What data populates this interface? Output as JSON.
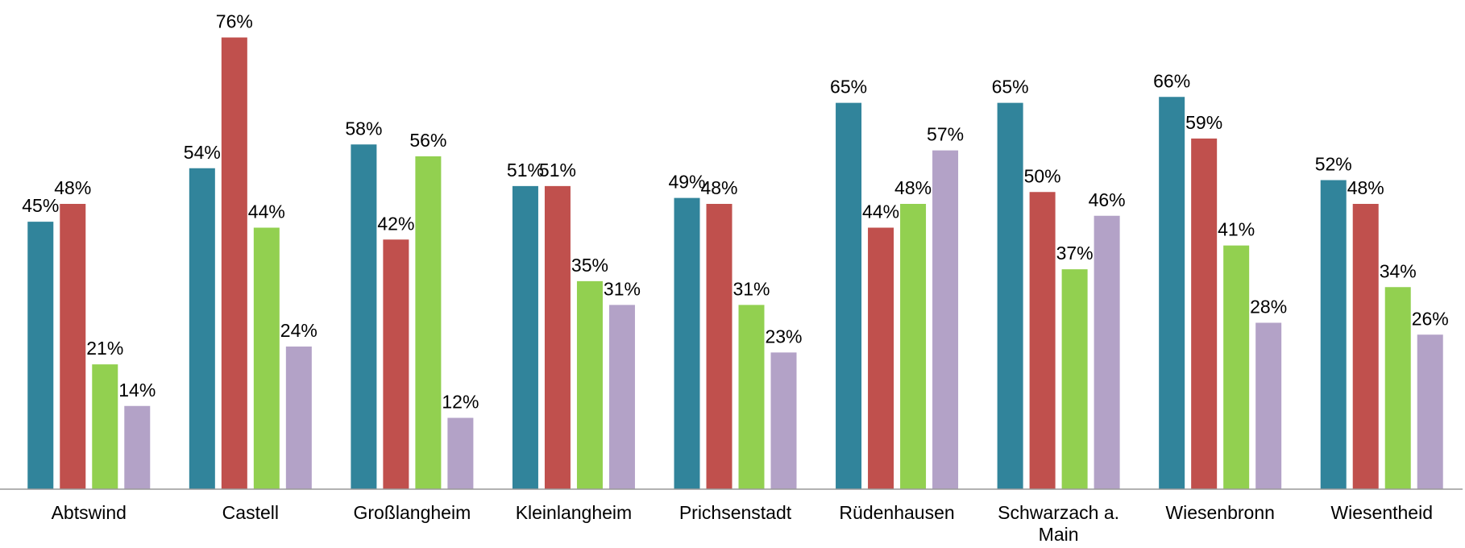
{
  "chart_data": {
    "type": "bar",
    "categories": [
      "Abtswind",
      "Castell",
      "Großlangheim",
      "Kleinlangheim",
      "Prichsenstadt",
      "Rüdenhausen",
      "Schwarzach a. Main",
      "Wiesenbronn",
      "Wiesentheid"
    ],
    "series": [
      {
        "color": "#31849b",
        "values": [
          45,
          54,
          58,
          51,
          49,
          65,
          65,
          66,
          52
        ],
        "value_labels": [
          "45%",
          "54%",
          "58%",
          "51%",
          "49%",
          "65%",
          "65%",
          "66%",
          "52%"
        ]
      },
      {
        "color": "#c0504d",
        "values": [
          48,
          76,
          42,
          51,
          48,
          44,
          50,
          59,
          48
        ],
        "value_labels": [
          "48%",
          "76%",
          "42%",
          "51%",
          "48%",
          "44%",
          "50%",
          "59%",
          "48%"
        ]
      },
      {
        "color": "#92d050",
        "values": [
          21,
          44,
          56,
          35,
          31,
          48,
          37,
          41,
          34
        ],
        "value_labels": [
          "21%",
          "44%",
          "56%",
          "35%",
          "31%",
          "48%",
          "37%",
          "41%",
          "34%"
        ]
      },
      {
        "color": "#b3a2c7",
        "values": [
          14,
          24,
          12,
          31,
          23,
          57,
          46,
          28,
          26
        ],
        "value_labels": [
          "14%",
          "24%",
          "12%",
          "31%",
          "23%",
          "57%",
          "46%",
          "28%",
          "26%"
        ]
      }
    ],
    "ylim": [
      0,
      80
    ]
  }
}
